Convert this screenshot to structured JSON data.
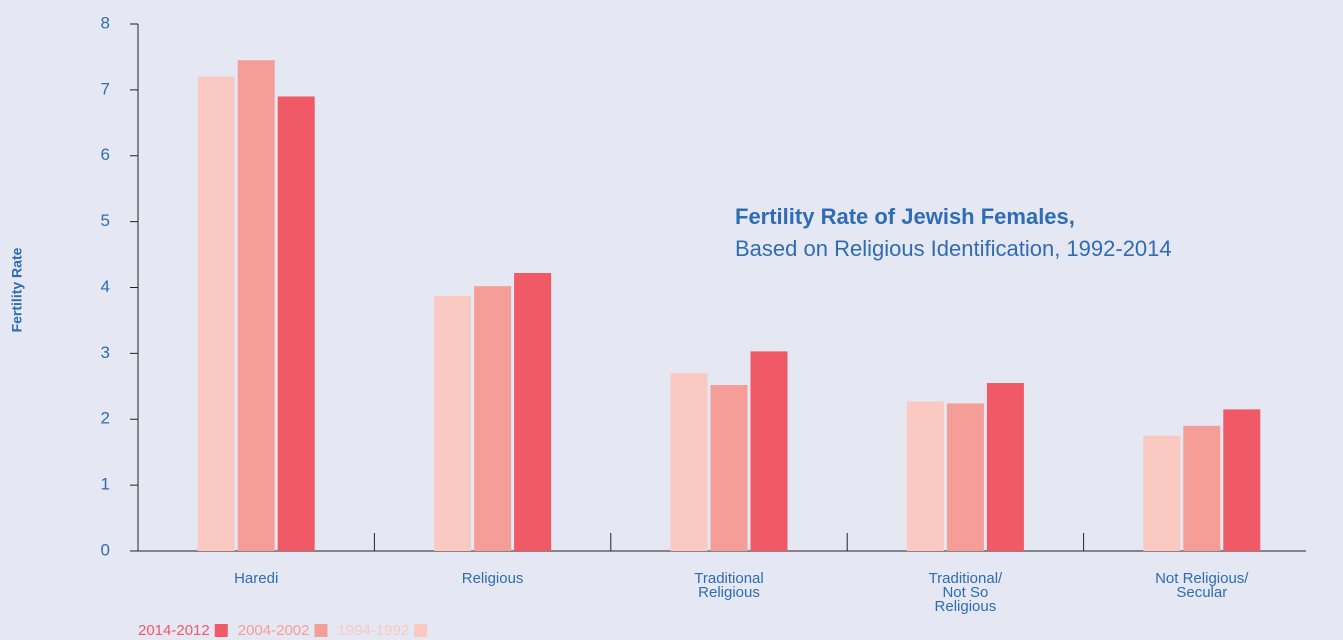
{
  "chart_data": {
    "type": "bar",
    "title": "Fertility Rate of Jewish Females,",
    "subtitle": "Based on Religious Identification, 1992-2014",
    "y_label": "Fertility Rate",
    "categories": [
      [
        "Haredi"
      ],
      [
        "Religious"
      ],
      [
        "Traditional",
        "Religious"
      ],
      [
        "Traditional/",
        "Not So",
        "Religious"
      ],
      [
        "Not Religious/",
        "Secular"
      ]
    ],
    "series": [
      {
        "name": "2014-2012",
        "color": "#ef5a66",
        "values": [
          6.9,
          4.22,
          3.03,
          2.55,
          2.15
        ]
      },
      {
        "name": "2004-2002",
        "color": "#f59e98",
        "values": [
          7.45,
          4.02,
          2.52,
          2.24,
          1.9
        ]
      },
      {
        "name": "1994-1992",
        "color": "#f9c9c2",
        "values": [
          7.2,
          3.87,
          2.7,
          2.27,
          1.75
        ]
      }
    ],
    "ylim": [
      0,
      8
    ],
    "yticks": [
      0,
      1,
      2,
      3,
      4,
      5,
      6,
      7,
      8
    ],
    "grid": false
  }
}
